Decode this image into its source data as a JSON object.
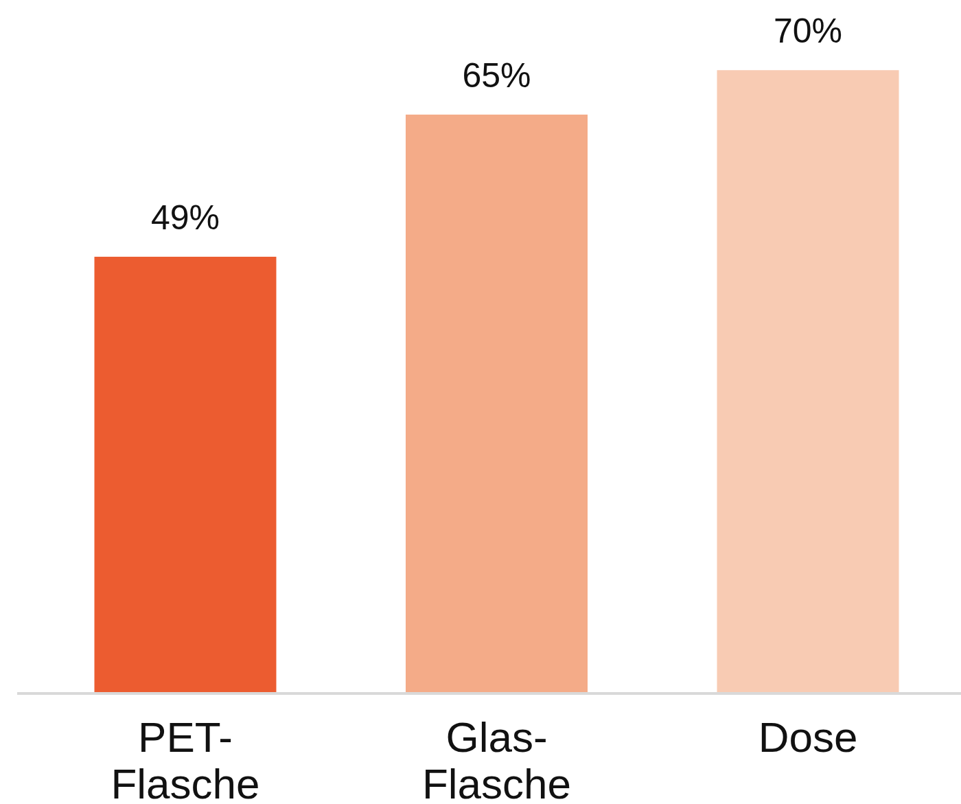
{
  "chart_data": {
    "type": "bar",
    "categories": [
      "PET-Flasche",
      "Glas-Flasche",
      "Dose"
    ],
    "values": [
      49,
      65,
      70
    ],
    "colors": [
      "#ec5c30",
      "#f4ab88",
      "#f8cbb3"
    ],
    "value_labels": [
      "49%",
      "65%",
      "70%"
    ],
    "tick_labels": "x"
  }
}
